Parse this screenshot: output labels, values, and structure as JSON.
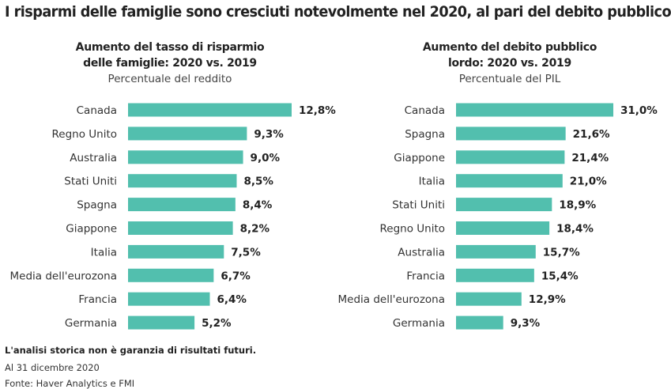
{
  "title": "I risparmi delle famiglie sono cresciuti notevolmente nel 2020, al pari del debito pubblico",
  "bar_color": "#52bfae",
  "chart_data": [
    {
      "type": "bar",
      "orientation": "horizontal",
      "title_line1": "Aumento del tasso di risparmio",
      "title_line2": "delle famiglie: 2020 vs. 2019",
      "subtitle": "Percentuale del reddito",
      "categories": [
        "Canada",
        "Regno Unito",
        "Australia",
        "Stati Uniti",
        "Spagna",
        "Giappone",
        "Italia",
        "Media dell'eurozona",
        "Francia",
        "Germania"
      ],
      "values": [
        12.8,
        9.3,
        9.0,
        8.5,
        8.4,
        8.2,
        7.5,
        6.7,
        6.4,
        5.2
      ],
      "labels": [
        "12,8%",
        "9,3%",
        "9,0%",
        "8,5%",
        "8,4%",
        "8,2%",
        "7,5%",
        "6,7%",
        "6,4%",
        "5,2%"
      ],
      "xlim": [
        0,
        12.8
      ]
    },
    {
      "type": "bar",
      "orientation": "horizontal",
      "title_line1": "Aumento del debito pubblico",
      "title_line2": "lordo: 2020 vs. 2019",
      "subtitle": "Percentuale del PIL",
      "categories": [
        "Canada",
        "Spagna",
        "Giappone",
        "Italia",
        "Stati Uniti",
        "Regno Unito",
        "Australia",
        "Francia",
        "Media dell'eurozona",
        "Germania"
      ],
      "values": [
        31.0,
        21.6,
        21.4,
        21.0,
        18.9,
        18.4,
        15.7,
        15.4,
        12.9,
        9.3
      ],
      "labels": [
        "31,0%",
        "21,6%",
        "21,4%",
        "21,0%",
        "18,9%",
        "18,4%",
        "15,7%",
        "15,4%",
        "12,9%",
        "9,3%"
      ],
      "xlim": [
        0,
        31.0
      ]
    }
  ],
  "footer": {
    "disclaimer": "L'analisi storica non è garanzia di risultati futuri.",
    "date": "Al 31 dicembre 2020",
    "source": "Fonte: Haver Analytics e FMI"
  }
}
